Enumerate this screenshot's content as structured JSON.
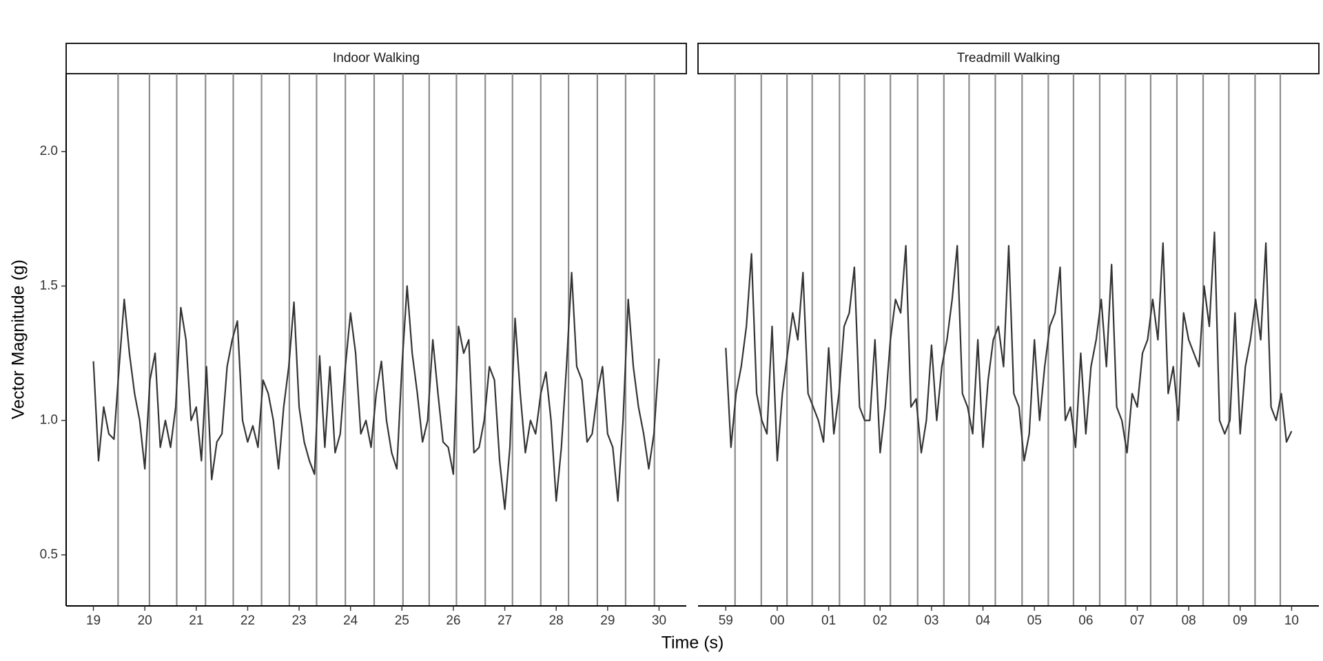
{
  "ylabel": "Vector Magnitude (g)",
  "xlabel": "Time (s)",
  "chart_data": [
    {
      "type": "line",
      "title": "Indoor Walking",
      "color": "#333333",
      "vline_color": "#8c8c8c",
      "xlim": [
        18.47,
        30.53
      ],
      "ylim": [
        0.31,
        2.29
      ],
      "yticks": [
        {
          "value": 0.5,
          "label": "0.5"
        },
        {
          "value": 1,
          "label": "1.0"
        },
        {
          "value": 1.5,
          "label": "1.5"
        },
        {
          "value": 2,
          "label": "2.0"
        }
      ],
      "xticks": [
        19,
        20,
        21,
        22,
        23,
        24,
        25,
        26,
        27,
        28,
        29,
        30
      ],
      "vlines": [
        19.48,
        20.09,
        20.62,
        21.18,
        21.72,
        22.27,
        22.81,
        23.34,
        23.9,
        24.46,
        25.02,
        25.53,
        26.06,
        26.62,
        27.15,
        27.7,
        28.24,
        28.8,
        29.35,
        29.91
      ],
      "x": [
        19.0,
        19.1,
        19.2,
        19.3,
        19.4,
        19.5,
        19.6,
        19.7,
        19.8,
        19.9,
        20.0,
        20.1,
        20.2,
        20.3,
        20.4,
        20.5,
        20.6,
        20.7,
        20.8,
        20.9,
        21.0,
        21.1,
        21.2,
        21.3,
        21.4,
        21.5,
        21.6,
        21.7,
        21.8,
        21.9,
        22.0,
        22.1,
        22.2,
        22.3,
        22.4,
        22.5,
        22.6,
        22.7,
        22.8,
        22.9,
        23.0,
        23.1,
        23.2,
        23.3,
        23.4,
        23.5,
        23.6,
        23.7,
        23.8,
        23.9,
        24.0,
        24.1,
        24.2,
        24.3,
        24.4,
        24.5,
        24.6,
        24.7,
        24.8,
        24.9,
        25.0,
        25.1,
        25.2,
        25.3,
        25.4,
        25.5,
        25.6,
        25.7,
        25.8,
        25.9,
        26.0,
        26.1,
        26.2,
        26.3,
        26.4,
        26.5,
        26.6,
        26.7,
        26.8,
        26.9,
        27.0,
        27.1,
        27.2,
        27.3,
        27.4,
        27.5,
        27.6,
        27.7,
        27.8,
        27.9,
        28.0,
        28.1,
        28.2,
        28.3,
        28.4,
        28.5,
        28.6,
        28.7,
        28.8,
        28.9,
        29.0,
        29.1,
        29.2,
        29.3,
        29.4,
        29.5,
        29.6,
        29.7,
        29.8,
        29.9,
        30.0
      ],
      "values": [
        1.22,
        0.85,
        1.05,
        0.95,
        0.93,
        1.2,
        1.45,
        1.25,
        1.1,
        1.0,
        0.82,
        1.15,
        1.25,
        0.9,
        1.0,
        0.9,
        1.05,
        1.42,
        1.3,
        1.0,
        1.05,
        0.85,
        1.2,
        0.78,
        0.92,
        0.95,
        1.2,
        1.3,
        1.37,
        1.0,
        0.92,
        0.98,
        0.9,
        1.15,
        1.1,
        1.0,
        0.82,
        1.05,
        1.2,
        1.44,
        1.05,
        0.92,
        0.85,
        0.8,
        1.24,
        0.9,
        1.2,
        0.88,
        0.95,
        1.2,
        1.4,
        1.25,
        0.95,
        1.0,
        0.9,
        1.1,
        1.22,
        1.0,
        0.88,
        0.82,
        1.2,
        1.5,
        1.25,
        1.1,
        0.92,
        1.0,
        1.3,
        1.1,
        0.92,
        0.9,
        0.8,
        1.35,
        1.25,
        1.3,
        0.88,
        0.9,
        1.0,
        1.2,
        1.15,
        0.85,
        0.67,
        0.9,
        1.38,
        1.1,
        0.88,
        1.0,
        0.95,
        1.1,
        1.18,
        1.0,
        0.7,
        0.9,
        1.2,
        1.55,
        1.2,
        1.15,
        0.92,
        0.95,
        1.1,
        1.2,
        0.95,
        0.9,
        0.7,
        1.0,
        1.45,
        1.2,
        1.05,
        0.95,
        0.82,
        0.95,
        1.23
      ]
    },
    {
      "type": "line",
      "title": "Treadmill Walking",
      "color": "#333333",
      "vline_color": "#8c8c8c",
      "xlim": [
        58.46,
        70.53
      ],
      "ylim": [
        0.31,
        2.29
      ],
      "xticks": [
        59,
        {
          "value": 60,
          "label": "00"
        },
        {
          "value": 61,
          "label": "01"
        },
        {
          "value": 62,
          "label": "02"
        },
        {
          "value": 63,
          "label": "03"
        },
        {
          "value": 64,
          "label": "04"
        },
        {
          "value": 65,
          "label": "05"
        },
        {
          "value": 66,
          "label": "06"
        },
        {
          "value": 67,
          "label": "07"
        },
        {
          "value": 68,
          "label": "08"
        },
        {
          "value": 69,
          "label": "09"
        },
        {
          "value": 70,
          "label": "10"
        }
      ],
      "vlines": [
        59.18,
        59.69,
        60.19,
        60.68,
        61.21,
        61.7,
        62.2,
        62.73,
        63.24,
        63.73,
        64.24,
        64.76,
        65.27,
        65.76,
        66.27,
        66.77,
        67.26,
        67.77,
        68.28,
        68.78,
        69.29,
        69.78
      ],
      "x": [
        59.0,
        59.1,
        59.2,
        59.3,
        59.4,
        59.5,
        59.6,
        59.7,
        59.8,
        59.9,
        60.0,
        60.1,
        60.2,
        60.3,
        60.4,
        60.5,
        60.6,
        60.7,
        60.8,
        60.9,
        61.0,
        61.1,
        61.2,
        61.3,
        61.4,
        61.5,
        61.6,
        61.7,
        61.8,
        61.9,
        62.0,
        62.1,
        62.2,
        62.3,
        62.4,
        62.5,
        62.6,
        62.7,
        62.8,
        62.9,
        63.0,
        63.1,
        63.2,
        63.3,
        63.4,
        63.5,
        63.6,
        63.7,
        63.8,
        63.9,
        64.0,
        64.1,
        64.2,
        64.3,
        64.4,
        64.5,
        64.6,
        64.7,
        64.8,
        64.9,
        65.0,
        65.1,
        65.2,
        65.3,
        65.4,
        65.5,
        65.6,
        65.7,
        65.8,
        65.9,
        66.0,
        66.1,
        66.2,
        66.3,
        66.4,
        66.5,
        66.6,
        66.7,
        66.8,
        66.9,
        67.0,
        67.1,
        67.2,
        67.3,
        67.4,
        67.5,
        67.6,
        67.7,
        67.8,
        67.9,
        68.0,
        68.1,
        68.2,
        68.3,
        68.4,
        68.5,
        68.6,
        68.7,
        68.8,
        68.9,
        69.0,
        69.1,
        69.2,
        69.3,
        69.4,
        69.5,
        69.6,
        69.7,
        69.8,
        69.9,
        70.0
      ],
      "values": [
        1.27,
        0.9,
        1.1,
        1.2,
        1.35,
        1.62,
        1.1,
        1.0,
        0.95,
        1.35,
        0.85,
        1.1,
        1.25,
        1.4,
        1.3,
        1.55,
        1.1,
        1.05,
        1.0,
        0.92,
        1.27,
        0.95,
        1.1,
        1.35,
        1.4,
        1.57,
        1.05,
        1.0,
        1.0,
        1.3,
        0.88,
        1.05,
        1.3,
        1.45,
        1.4,
        1.65,
        1.05,
        1.08,
        0.88,
        1.0,
        1.28,
        1.0,
        1.2,
        1.3,
        1.45,
        1.65,
        1.1,
        1.05,
        0.95,
        1.3,
        0.9,
        1.15,
        1.3,
        1.35,
        1.2,
        1.65,
        1.1,
        1.05,
        0.85,
        0.95,
        1.3,
        1.0,
        1.2,
        1.35,
        1.4,
        1.57,
        1.0,
        1.05,
        0.9,
        1.25,
        0.95,
        1.2,
        1.3,
        1.45,
        1.2,
        1.58,
        1.05,
        1.0,
        0.88,
        1.1,
        1.05,
        1.25,
        1.3,
        1.45,
        1.3,
        1.66,
        1.1,
        1.2,
        1.0,
        1.4,
        1.3,
        1.25,
        1.2,
        1.5,
        1.35,
        1.7,
        1.0,
        0.95,
        1.0,
        1.4,
        0.95,
        1.2,
        1.3,
        1.45,
        1.3,
        1.66,
        1.05,
        1.0,
        1.1,
        0.92,
        0.96
      ]
    }
  ]
}
